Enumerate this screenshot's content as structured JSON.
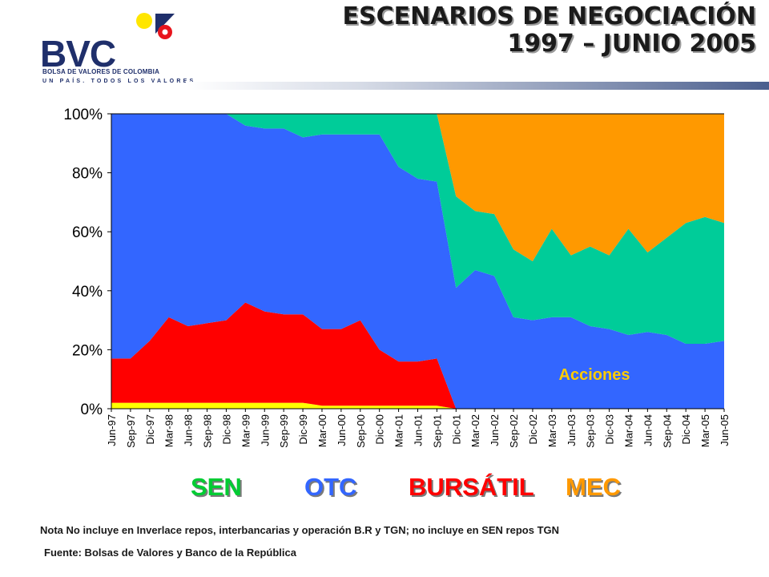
{
  "logo": {
    "word": "BVC",
    "subtitle": "BOLSA DE VALORES DE COLOMBIA",
    "tagline": "UN PAÍS. TODOS LOS VALORES"
  },
  "title": {
    "line1": "ESCENARIOS DE NEGOCIACIÓN",
    "line2": "1997 – JUNIO 2005"
  },
  "chart_data": {
    "type": "area",
    "stacked": true,
    "percent": true,
    "yticks": [
      "0%",
      "20%",
      "40%",
      "60%",
      "80%",
      "100%"
    ],
    "ylim": [
      0,
      100
    ],
    "grid": false,
    "x": [
      "Jun-97",
      "Sep-97",
      "Dic-97",
      "Mar-98",
      "Jun-98",
      "Sep-98",
      "Dic-98",
      "Mar-99",
      "Jun-99",
      "Sep-99",
      "Dic-99",
      "Mar-00",
      "Jun-00",
      "Sep-00",
      "Dic-00",
      "Mar-01",
      "Jun-01",
      "Sep-01",
      "Dic-01",
      "Mar-02",
      "Jun-02",
      "Sep-02",
      "Dic-02",
      "Mar-03",
      "Jun-03",
      "Sep-03",
      "Dic-03",
      "Mar-04",
      "Jun-04",
      "Sep-04",
      "Dic-04",
      "Mar-05",
      "Jun-05"
    ],
    "series": [
      {
        "color": "#ffff00",
        "values": [
          2,
          2,
          2,
          2,
          2,
          2,
          2,
          2,
          2,
          2,
          2,
          1,
          1,
          1,
          1,
          1,
          1,
          1,
          0,
          0,
          0,
          0,
          0,
          0,
          0,
          0,
          0,
          0,
          0,
          0,
          0,
          0,
          0
        ]
      },
      {
        "color": "#ff0000",
        "values": [
          15,
          15,
          21,
          29,
          26,
          27,
          28,
          34,
          31,
          30,
          30,
          26,
          26,
          29,
          19,
          15,
          15,
          16,
          0,
          0,
          0,
          0,
          0,
          0,
          0,
          0,
          0,
          0,
          0,
          0,
          0,
          0,
          0
        ]
      },
      {
        "color": "#3366ff",
        "values": [
          83,
          83,
          77,
          69,
          72,
          71,
          70,
          60,
          62,
          63,
          60,
          66,
          66,
          63,
          73,
          66,
          62,
          60,
          41,
          47,
          45,
          31,
          30,
          31,
          31,
          28,
          27,
          25,
          26,
          25,
          22,
          22,
          23
        ]
      },
      {
        "color": "#00cc99",
        "values": [
          0,
          0,
          0,
          0,
          0,
          0,
          0,
          4,
          5,
          5,
          8,
          7,
          7,
          7,
          7,
          18,
          22,
          23,
          31,
          20,
          21,
          23,
          20,
          30,
          21,
          27,
          25,
          36,
          27,
          33,
          41,
          43,
          40
        ]
      },
      {
        "color": "#ff9900",
        "values": [
          0,
          0,
          0,
          0,
          0,
          0,
          0,
          0,
          0,
          0,
          0,
          0,
          0,
          0,
          0,
          0,
          0,
          0,
          28,
          33,
          34,
          46,
          50,
          39,
          48,
          45,
          48,
          39,
          47,
          42,
          37,
          35,
          37
        ]
      }
    ],
    "annotations": [
      {
        "text": "Acciones",
        "color": "#ffcc00"
      }
    ]
  },
  "legend": [
    {
      "label": "SEN",
      "color": "#00cc33"
    },
    {
      "label": "OTC",
      "color": "#3366ff"
    },
    {
      "label": "BURSÁTIL",
      "color": "#ff0000"
    },
    {
      "label": "MEC",
      "color": "#ff9900"
    }
  ],
  "footer": {
    "note": "Nota No incluye en Inverlace repos, interbancarias y operación B.R y TGN; no incluye en SEN repos TGN",
    "source": "Fuente: Bolsas de Valores y Banco de la República"
  }
}
